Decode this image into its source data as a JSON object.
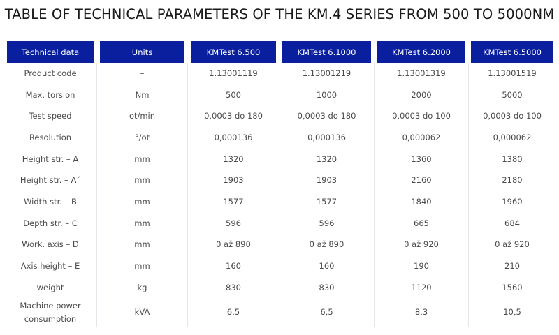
{
  "title": "TABLE OF TECHNICAL PARAMETERS OF THE KM.4 SERIES FROM 500 TO 5000NM",
  "colors": {
    "header_bg": "#0a1f9e",
    "header_text": "#ffffff",
    "body_text": "#4a4a4a"
  },
  "table": {
    "headers": [
      "Technical data",
      "Units",
      "KMTest 6.500",
      "KMTest 6.1000",
      "KMTest 6.2000",
      "KMTest 6.5000"
    ],
    "rows": [
      [
        "Product code",
        "–",
        "1.13001119",
        "1.13001219",
        "1.13001319",
        "1.13001519"
      ],
      [
        "Max. torsion",
        "Nm",
        "500",
        "1000",
        "2000",
        "5000"
      ],
      [
        "Test speed",
        "ot/min",
        "0,0003 do 180",
        "0,0003 do 180",
        "0,0003 do 100",
        "0,0003 do 100"
      ],
      [
        "Resolution",
        "°/ot",
        "0,000136",
        "0,000136",
        "0,000062",
        "0,000062"
      ],
      [
        "Height str. – A",
        "mm",
        "1320",
        "1320",
        "1360",
        "1380"
      ],
      [
        "Height str. – A´",
        "mm",
        "1903",
        "1903",
        "2160",
        "2180"
      ],
      [
        "Width str. – B",
        "mm",
        "1577",
        "1577",
        "1840",
        "1960"
      ],
      [
        "Depth str. – C",
        "mm",
        "596",
        "596",
        "665",
        "684"
      ],
      [
        "Work. axis – D",
        "mm",
        "0 až 890",
        "0 až 890",
        "0 až 920",
        "0 až 920"
      ],
      [
        "Axis height – E",
        "mm",
        "160",
        "160",
        "190",
        "210"
      ],
      [
        "weight",
        "kg",
        "830",
        "830",
        "1120",
        "1560"
      ],
      [
        "Machine power consumption",
        "kVA",
        "6,5",
        "6,5",
        "8,3",
        "10,5"
      ]
    ]
  }
}
